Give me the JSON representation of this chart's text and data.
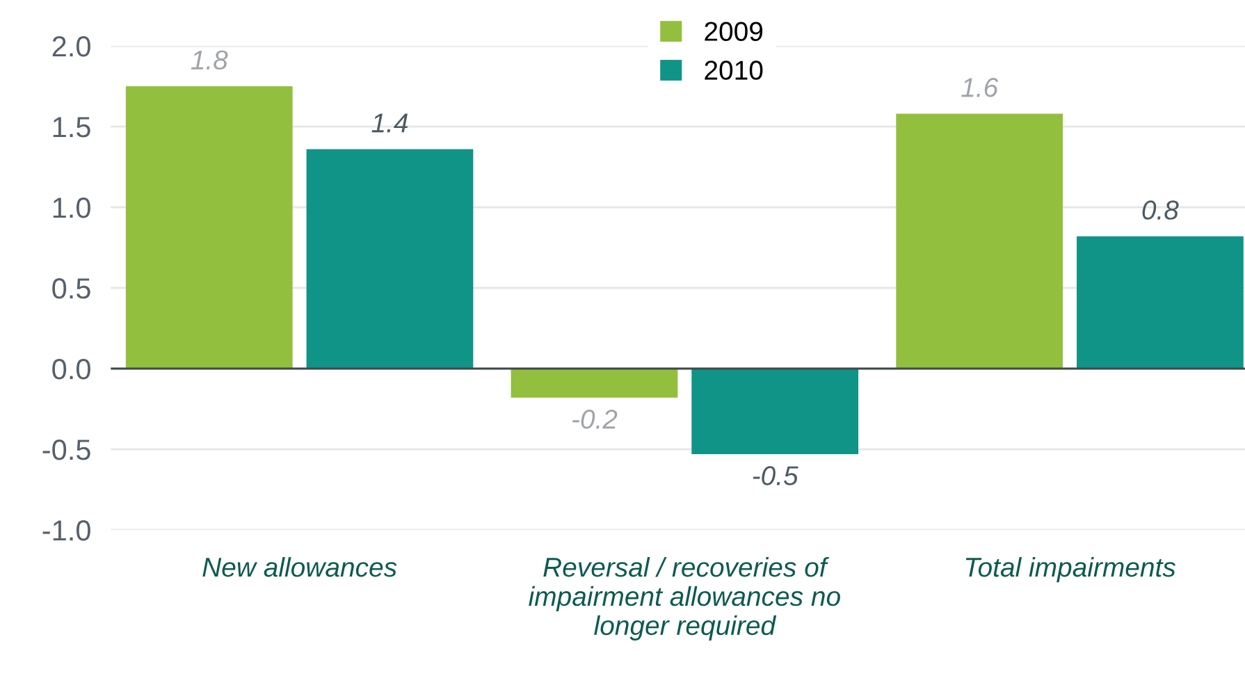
{
  "chart_data": {
    "type": "bar",
    "categories": [
      "New allowances",
      "Reversal / recoveries of\nimpairment allowances no\nlonger required",
      "Total impairments"
    ],
    "series": [
      {
        "name": "2009",
        "color": "#93bf3e",
        "values": [
          1.75,
          -0.18,
          1.58
        ],
        "value_labels": [
          "1.8",
          "-0.2",
          "1.6"
        ]
      },
      {
        "name": "2010",
        "color": "#109488",
        "values": [
          1.36,
          -0.53,
          0.82
        ],
        "value_labels": [
          "1.4",
          "-0.5",
          "0.8"
        ]
      }
    ],
    "ylim": [
      -1,
      2
    ],
    "yticks": [
      {
        "value": -1,
        "label": "-1.0"
      },
      {
        "value": -0.5,
        "label": "-0.5"
      },
      {
        "value": 0,
        "label": "0.0"
      },
      {
        "value": 0.5,
        "label": "0.5"
      },
      {
        "value": 1,
        "label": "1.0"
      },
      {
        "value": 1.5,
        "label": "1.5"
      },
      {
        "value": 2,
        "label": "2.0"
      }
    ],
    "grid": "y",
    "legend": "top"
  }
}
